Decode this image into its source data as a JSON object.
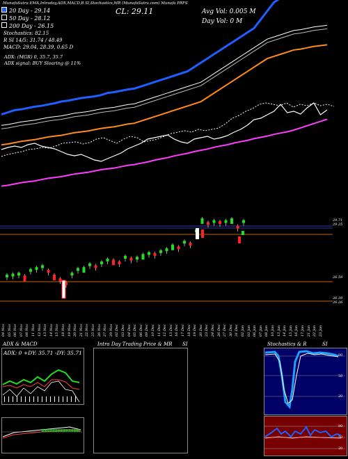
{
  "header": {
    "top_line": "MunafaSutra EMA,Intraday,ADX,MACD,B  SI,Stochastics,MR  (MunafaSutra.com) Munafa PRFS",
    "cl_label": "CL: 29.11",
    "avg_vol": "Avg Vol: 0.005 M",
    "day_vol": "Day Vol: 0  M",
    "ma_lines": [
      {
        "text": "20  Day - 29.14",
        "color": "#1f5fff"
      },
      {
        "text": "50  Day - 28.12",
        "color": "#ffffff"
      },
      {
        "text": "200  Day - 26.15",
        "color": "#ffffff"
      }
    ],
    "stochastics": "Stochastics: 82.15",
    "r_line": "R                SI 14/5: 31.74  /  48.49",
    "macd": "MACD: 29.04, 28.39, 0.65 D",
    "adx": "ADX:                         (MGR) 0, 35.7,  35.7",
    "adx_signal": "ADX  signal:                       BUY Sloaring @ 11%"
  },
  "price_axis": [
    "29.71",
    "29.25",
    "26.59",
    "26.39",
    "26.26"
  ],
  "date_labels": [
    "04 Nov",
    "05 Nov",
    "06 Nov",
    "07 Nov",
    "08 Nov",
    "11 Nov",
    "12 Nov",
    "13 Nov",
    "14 Nov",
    "15 Nov",
    "18 Nov",
    "19 Nov",
    "20 Nov",
    "21 Nov",
    "22 Nov",
    "25 Nov",
    "26 Nov",
    "27 Nov",
    "29 Nov",
    "02 Dec",
    "03 Dec",
    "04 Dec",
    "05 Dec",
    "06 Dec",
    "09 Dec",
    "10 Dec",
    "11 Dec",
    "12 Dec",
    "13 Dec",
    "16 Dec",
    "17 Dec",
    "18 Dec",
    "19 Dec",
    "20 Dec",
    "23 Dec",
    "24 Dec",
    "26 Dec",
    "27 Dec",
    "30 Dec",
    "31 Dec",
    "02 Jan",
    "03 Jan",
    "06 Jan",
    "07 Jan",
    "08 Jan",
    "10 Jan",
    "13 Jan",
    "14 Jan",
    "15 Jan",
    "16 Jan",
    "17 Jan",
    "21 Jan",
    "22 Jan",
    "23 Jan"
  ],
  "panels": {
    "adx_macd": {
      "title": "ADX  & MACD",
      "readout": "ADX: 0  +DY: 35.71  -DY: 35.71"
    },
    "intraday": {
      "title": "Intra  Day Trading Price  & MR",
      "suffix": "SI"
    },
    "stoch": {
      "title": "Stochastics & R",
      "suffix": "SI",
      "ticks": [
        "80",
        "50",
        "20"
      ]
    },
    "rsi": {
      "ticks": [
        "80",
        "50",
        "20"
      ]
    }
  },
  "colors": {
    "ema20": "#1f5fff",
    "ema50": "#ffffff",
    "ema100": "#ff8c1a",
    "ema200": "#ff3cff",
    "up": "#22dd22",
    "down": "#ff2222",
    "grid_orange": "#c86414"
  },
  "chart_data": [
    {
      "type": "line",
      "title": "",
      "series": [
        {
          "name": "20  Day",
          "values": [
            26.1,
            26.15,
            26.2,
            26.22,
            26.25,
            26.28,
            26.3,
            26.33,
            26.36,
            26.4,
            26.42,
            26.45,
            26.48,
            26.5,
            26.52,
            26.55,
            26.6,
            26.62,
            26.65,
            26.68,
            26.7,
            26.75,
            26.8,
            26.85,
            26.9,
            26.95,
            27.0,
            27.05,
            27.1,
            27.2,
            27.3,
            27.4,
            27.5,
            27.6,
            27.7,
            27.8,
            27.9,
            28.0,
            28.1,
            28.3,
            28.5,
            28.7,
            28.8,
            28.9,
            29.0,
            29.05,
            29.08,
            29.1,
            29.12,
            29.14
          ]
        },
        {
          "name": "50  Day",
          "values": [
            25.8,
            25.82,
            25.85,
            25.88,
            25.9,
            25.92,
            25.95,
            25.98,
            26.0,
            26.02,
            26.05,
            26.08,
            26.1,
            26.12,
            26.15,
            26.18,
            26.2,
            26.22,
            26.25,
            26.28,
            26.3,
            26.35,
            26.4,
            26.45,
            26.5,
            26.55,
            26.6,
            26.65,
            26.7,
            26.75,
            26.8,
            26.9,
            27.0,
            27.1,
            27.2,
            27.3,
            27.4,
            27.5,
            27.6,
            27.7,
            27.8,
            27.85,
            27.9,
            27.95,
            28.0,
            28.02,
            28.05,
            28.08,
            28.1,
            28.12
          ]
        },
        {
          "name": "200  Day",
          "values": [
            24.6,
            24.62,
            24.65,
            24.68,
            24.7,
            24.72,
            24.75,
            24.78,
            24.8,
            24.82,
            24.85,
            24.88,
            24.9,
            24.92,
            24.95,
            24.98,
            25.0,
            25.02,
            25.05,
            25.08,
            25.1,
            25.13,
            25.16,
            25.2,
            25.23,
            25.26,
            25.3,
            25.33,
            25.36,
            25.4,
            25.43,
            25.46,
            25.5,
            25.53,
            25.56,
            25.6,
            25.63,
            25.66,
            25.7,
            25.73,
            25.76,
            25.8,
            25.83,
            25.86,
            25.9,
            25.95,
            26.0,
            26.05,
            26.1,
            26.15
          ]
        }
      ]
    },
    {
      "type": "bar",
      "values": [
        26.6,
        26.65,
        26.7,
        26.55,
        26.9,
        27.0,
        27.1,
        26.85,
        26.6,
        26.4,
        26.2,
        26.7,
        26.95,
        27.0,
        27.2,
        27.1,
        27.3,
        27.45,
        27.4,
        27.3,
        27.6,
        27.5,
        27.55,
        27.7,
        27.8,
        27.75,
        27.9,
        28.0,
        28.2,
        28.1,
        28.4,
        28.3,
        29.0,
        29.6,
        29.4,
        29.5,
        29.45,
        29.5,
        29.6,
        29.2,
        29.5
      ]
    }
  ]
}
